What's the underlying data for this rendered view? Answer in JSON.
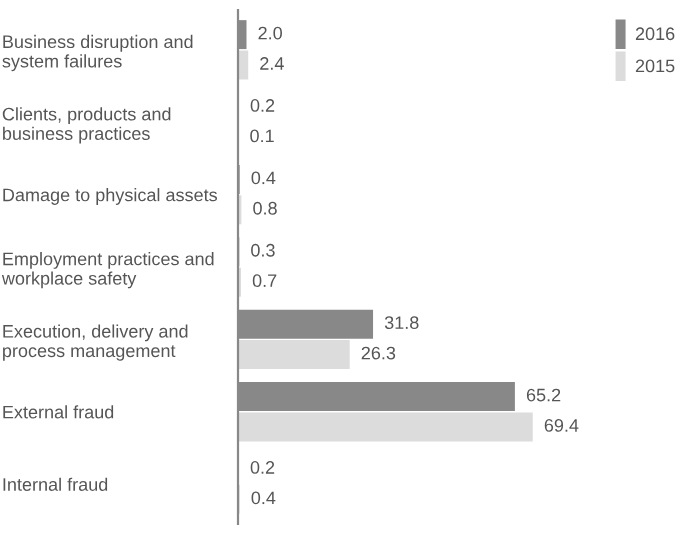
{
  "chart_data": {
    "type": "bar",
    "orientation": "horizontal",
    "categories": [
      "Business disruption and\nsystem failures",
      "Clients, products and\nbusiness practices",
      "Damage to physical assets",
      "Employment practices and\nworkplace safety",
      "Execution, delivery and\nprocess management",
      "External fraud",
      "Internal fraud"
    ],
    "series": [
      {
        "name": "2016",
        "color": "#888888",
        "values": [
          2.0,
          0.2,
          0.4,
          0.3,
          31.8,
          65.2,
          0.2
        ],
        "value_labels": [
          "2.0",
          "0.2",
          "0.4",
          "0.3",
          "31.8",
          "65.2",
          "0.2"
        ]
      },
      {
        "name": "2015",
        "color": "#dcdcdc",
        "values": [
          2.4,
          0.1,
          0.8,
          0.7,
          26.3,
          69.4,
          0.4
        ],
        "value_labels": [
          "2.4",
          "0.1",
          "0.8",
          "0.7",
          "26.3",
          "69.4",
          "0.4"
        ]
      }
    ],
    "relative": false,
    "legend": "top right",
    "grid": false
  }
}
